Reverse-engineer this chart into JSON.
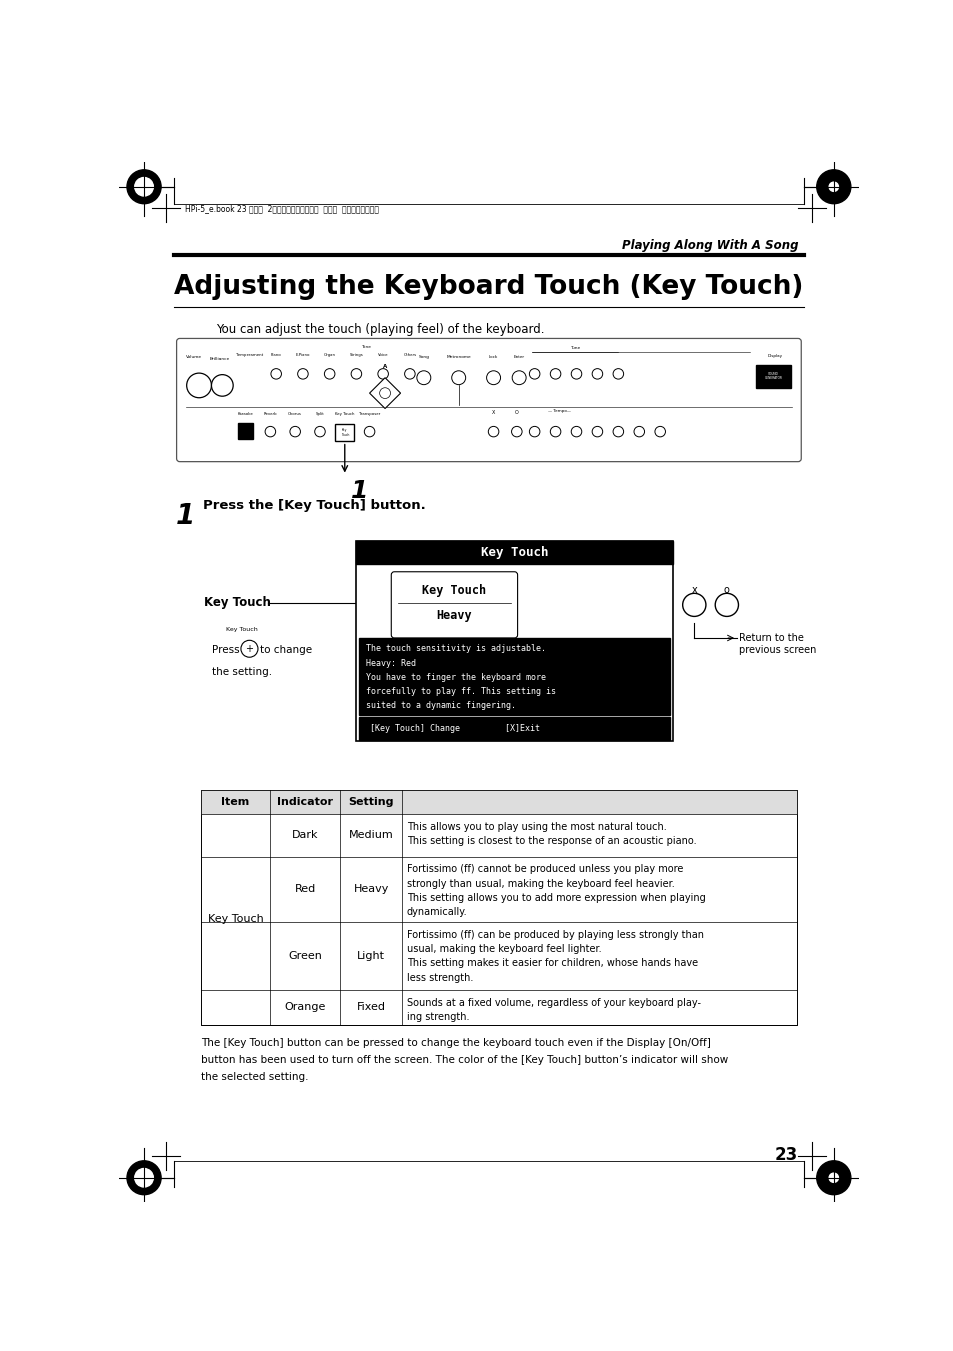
{
  "bg_color": "#ffffff",
  "page_width": 9.54,
  "page_height": 13.51,
  "header_text": "Playing Along With A Song",
  "title": "Adjusting the Keyboard Touch (Key Touch)",
  "subtitle": "You can adjust the touch (playing feel) of the keyboard.",
  "step1_text": "Press the [Key Touch] button.",
  "key_touch_label": "Key Touch",
  "key_touch_small": "Key Touch",
  "press_line": "Press",
  "to_change_line": "to change",
  "the_setting_line": "the setting.",
  "return_text": "Return to the\nprevious screen",
  "lcd_title": "Key Touch",
  "lcd_item1": "Key Touch",
  "lcd_item2": "Heavy",
  "lcd_desc_lines": [
    "The touch sensitivity is adjustable.",
    "Heavy: Red",
    "You have to finger the keyboard more",
    "forcefully to play ff. This setting is",
    "suited to a dynamic fingering."
  ],
  "lcd_footer": "[Key Touch] Change         [X]Exit",
  "table_headers": [
    "Item",
    "Indicator",
    "Setting"
  ],
  "table_row_item": "Key Touch",
  "table_rows": [
    [
      "Dark",
      "Medium",
      "This allows you to play using the most natural touch.\nThis setting is closest to the response of an acoustic piano."
    ],
    [
      "Red",
      "Heavy",
      "Fortissimo (ff) cannot be produced unless you play more\nstrongly than usual, making the keyboard feel heavier.\nThis setting allows you to add more expression when playing\ndynamically."
    ],
    [
      "Green",
      "Light",
      "Fortissimo (ff) can be produced by playing less strongly than\nusual, making the keyboard feel lighter.\nThis setting makes it easier for children, whose hands have\nless strength."
    ],
    [
      "Orange",
      "Fixed",
      "Sounds at a fixed volume, regardless of your keyboard play-\ning strength."
    ]
  ],
  "footer_note_lines": [
    "The [Key Touch] button can be pressed to change the keyboard touch even if the Display [On/Off]",
    "button has been used to turn off the screen. The color of the [Key Touch] button’s indicator will show",
    "the selected setting."
  ],
  "page_number": "23",
  "header_file": "HPi-5_e.book 23 ページ  2００４年１２月２１日  火曜日  午後１２時４６分"
}
